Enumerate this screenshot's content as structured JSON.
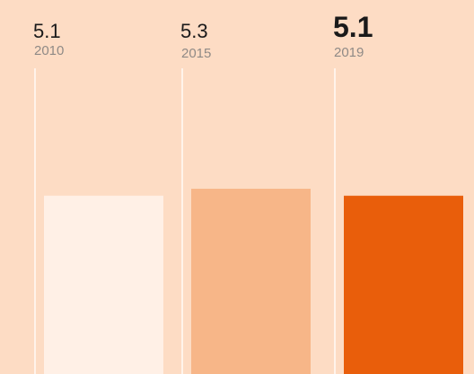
{
  "chart_data": {
    "type": "bar",
    "categories": [
      "2010",
      "2015",
      "2019"
    ],
    "values": [
      5.1,
      5.3,
      5.1
    ],
    "colors": [
      "#fff0e6",
      "#f7b688",
      "#e95e0b"
    ],
    "ylim": [
      0,
      10.7
    ]
  }
}
